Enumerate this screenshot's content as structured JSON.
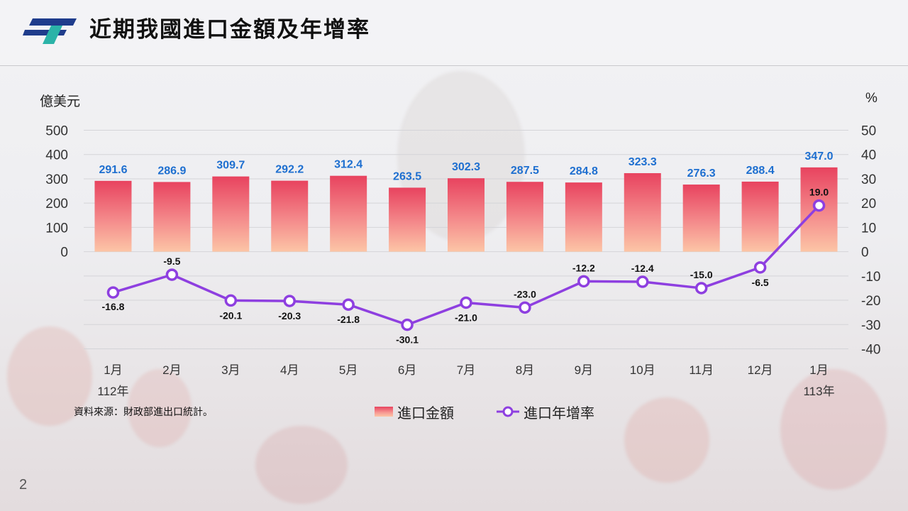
{
  "page": {
    "title": "近期我國進口金額及年增率",
    "page_number": "2",
    "source": "資料來源：財政部進出口統計。"
  },
  "colors": {
    "bar_top": "#e8435f",
    "bar_bottom": "#fcc5a6",
    "bar_label": "#1e6fd0",
    "line": "#8e3fe0",
    "grid": "#d4d4d8"
  },
  "chart_data": {
    "type": "bar+line",
    "categories": [
      "1月",
      "2月",
      "3月",
      "4月",
      "5月",
      "6月",
      "7月",
      "8月",
      "9月",
      "10月",
      "11月",
      "12月",
      "1月"
    ],
    "year_labels": [
      {
        "index": 0,
        "label": "112年"
      },
      {
        "index": 12,
        "label": "113年"
      }
    ],
    "left_axis": {
      "unit": "億美元",
      "ylim": [
        0,
        500
      ],
      "ticks": [
        0,
        100,
        200,
        300,
        400,
        500
      ]
    },
    "right_axis": {
      "unit": "%",
      "ylim": [
        -40,
        50
      ],
      "ticks": [
        50,
        40,
        30,
        20,
        10,
        0,
        -10,
        -20,
        -30,
        -40
      ]
    },
    "series": [
      {
        "name": "進口金額",
        "type": "bar",
        "axis": "left",
        "values": [
          291.6,
          286.9,
          309.7,
          292.2,
          312.4,
          263.5,
          302.3,
          287.5,
          284.8,
          323.3,
          276.3,
          288.4,
          347.0
        ]
      },
      {
        "name": "進口年增率",
        "type": "line",
        "axis": "right",
        "values": [
          -16.8,
          -9.5,
          -20.1,
          -20.3,
          -21.8,
          -30.1,
          -21.0,
          -23.0,
          -12.2,
          -12.4,
          -15.0,
          -6.5,
          19.0
        ]
      }
    ],
    "legend": {
      "position": "bottom-center"
    },
    "grid": true
  }
}
